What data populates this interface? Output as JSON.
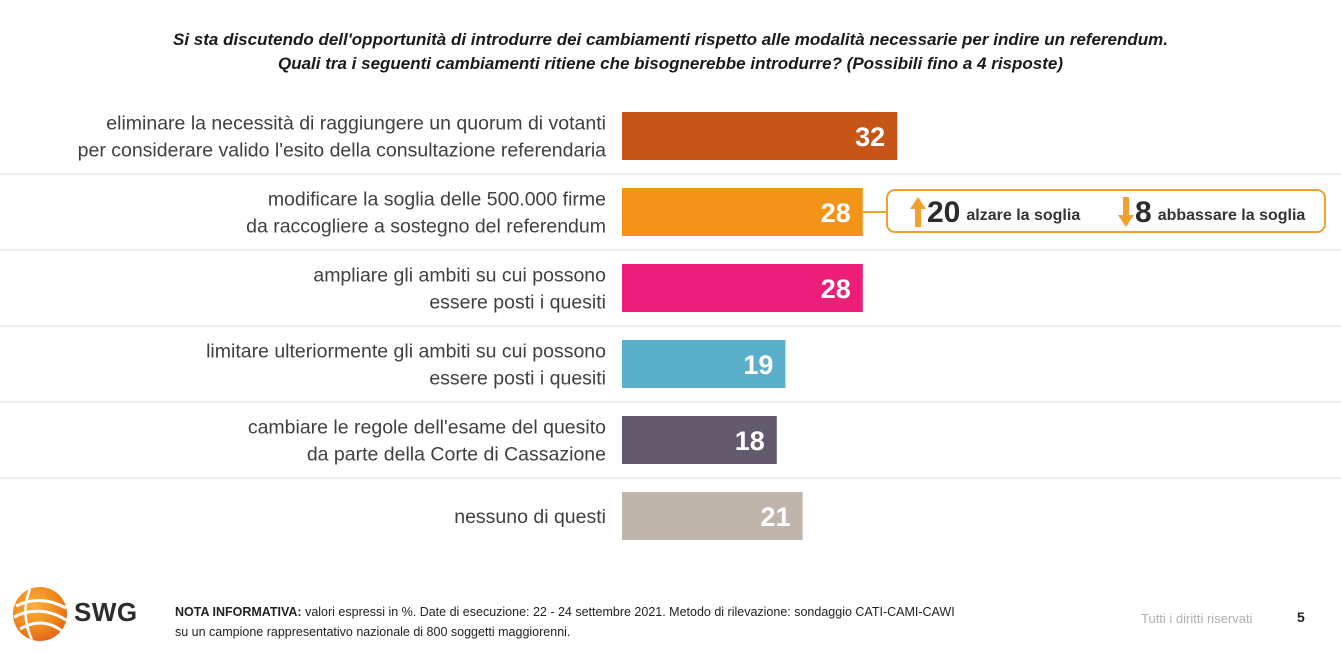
{
  "title": {
    "line1": "Si sta discutendo dell'opportunità di introdurre dei cambiamenti rispetto alle modalità necessarie per indire un referendum.",
    "line2": "Quali tra i seguenti cambiamenti ritiene che bisognerebbe introdurre? (Possibili fino a 4 risposte)"
  },
  "chart_data": {
    "type": "bar",
    "orientation": "horizontal",
    "categories": [
      [
        "eliminare la necessità di raggiungere un quorum di votanti",
        "per considerare valido l'esito della consultazione referendaria"
      ],
      [
        "modificare la soglia delle 500.000 firme",
        "da raccogliere a sostegno del referendum"
      ],
      [
        "ampliare gli ambiti su cui possono",
        "essere posti i quesiti"
      ],
      [
        "limitare ulteriormente gli ambiti su cui possono",
        "essere posti i quesiti"
      ],
      [
        "cambiare le regole dell'esame del quesito",
        "da parte della Corte di Cassazione"
      ],
      [
        "nessuno di questi"
      ]
    ],
    "values": [
      32,
      28,
      28,
      19,
      18,
      21
    ],
    "colors": [
      "#c65518",
      "#f39419",
      "#ec1e79",
      "#5aafcb",
      "#635a6d",
      "#c0b5ab"
    ],
    "xlim": [
      0,
      100
    ],
    "grid": false,
    "legend": "none"
  },
  "callout": {
    "up_value": "20",
    "up_label": "alzare la soglia",
    "down_value": "8",
    "down_label": "abbassare la soglia",
    "color": "#f0a030"
  },
  "footer": {
    "note_label": "NOTA INFORMATIVA:",
    "note_line1": " valori espressi in %. Date di esecuzione: 22 - 24 settembre 2021. Metodo di rilevazione: sondaggio CATI-CAMI-CAWI",
    "note_line2": "su un campione rappresentativo nazionale di 800 soggetti maggiorenni.",
    "rights": "Tutti i diritti riservati",
    "page": "5",
    "logo_text": "SWG"
  }
}
